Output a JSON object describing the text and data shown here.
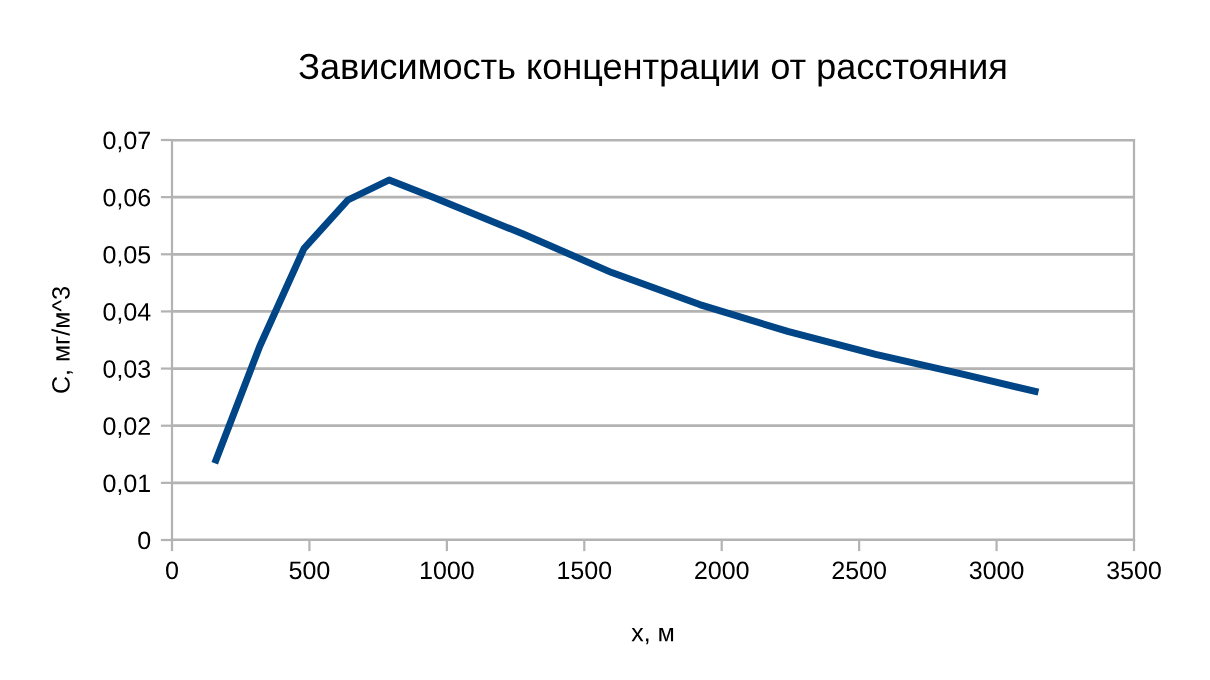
{
  "chart_data": {
    "type": "line",
    "title": "Зависимость концентрации от расстояния",
    "xlabel": "x, м",
    "ylabel": "C, мг/м^3",
    "x": [
      160,
      320,
      480,
      640,
      790,
      950,
      1280,
      1600,
      1920,
      2240,
      2560,
      2880,
      3140
    ],
    "series": [
      {
        "color": "#004586",
        "values": [
          0.014,
          0.034,
          0.051,
          0.0595,
          0.063,
          0.06,
          0.0535,
          0.0468,
          0.0412,
          0.0365,
          0.0325,
          0.029,
          0.026
        ]
      }
    ],
    "xlim": [
      0,
      3500
    ],
    "xticks": [
      0,
      500,
      1000,
      1500,
      2000,
      2500,
      3000,
      3500
    ],
    "ylim": [
      0,
      0.07
    ],
    "yticks": [
      {
        "value": 0,
        "label": "0"
      },
      {
        "value": 0.01,
        "label": "0,01"
      },
      {
        "value": 0.02,
        "label": "0,02"
      },
      {
        "value": 0.03,
        "label": "0,03"
      },
      {
        "value": 0.04,
        "label": "0,04"
      },
      {
        "value": 0.05,
        "label": "0,05"
      },
      {
        "value": 0.06,
        "label": "0,06"
      },
      {
        "value": 0.07,
        "label": "0,07"
      }
    ],
    "grid": "y",
    "marker": "none",
    "line_style": "solid",
    "legend": false
  }
}
